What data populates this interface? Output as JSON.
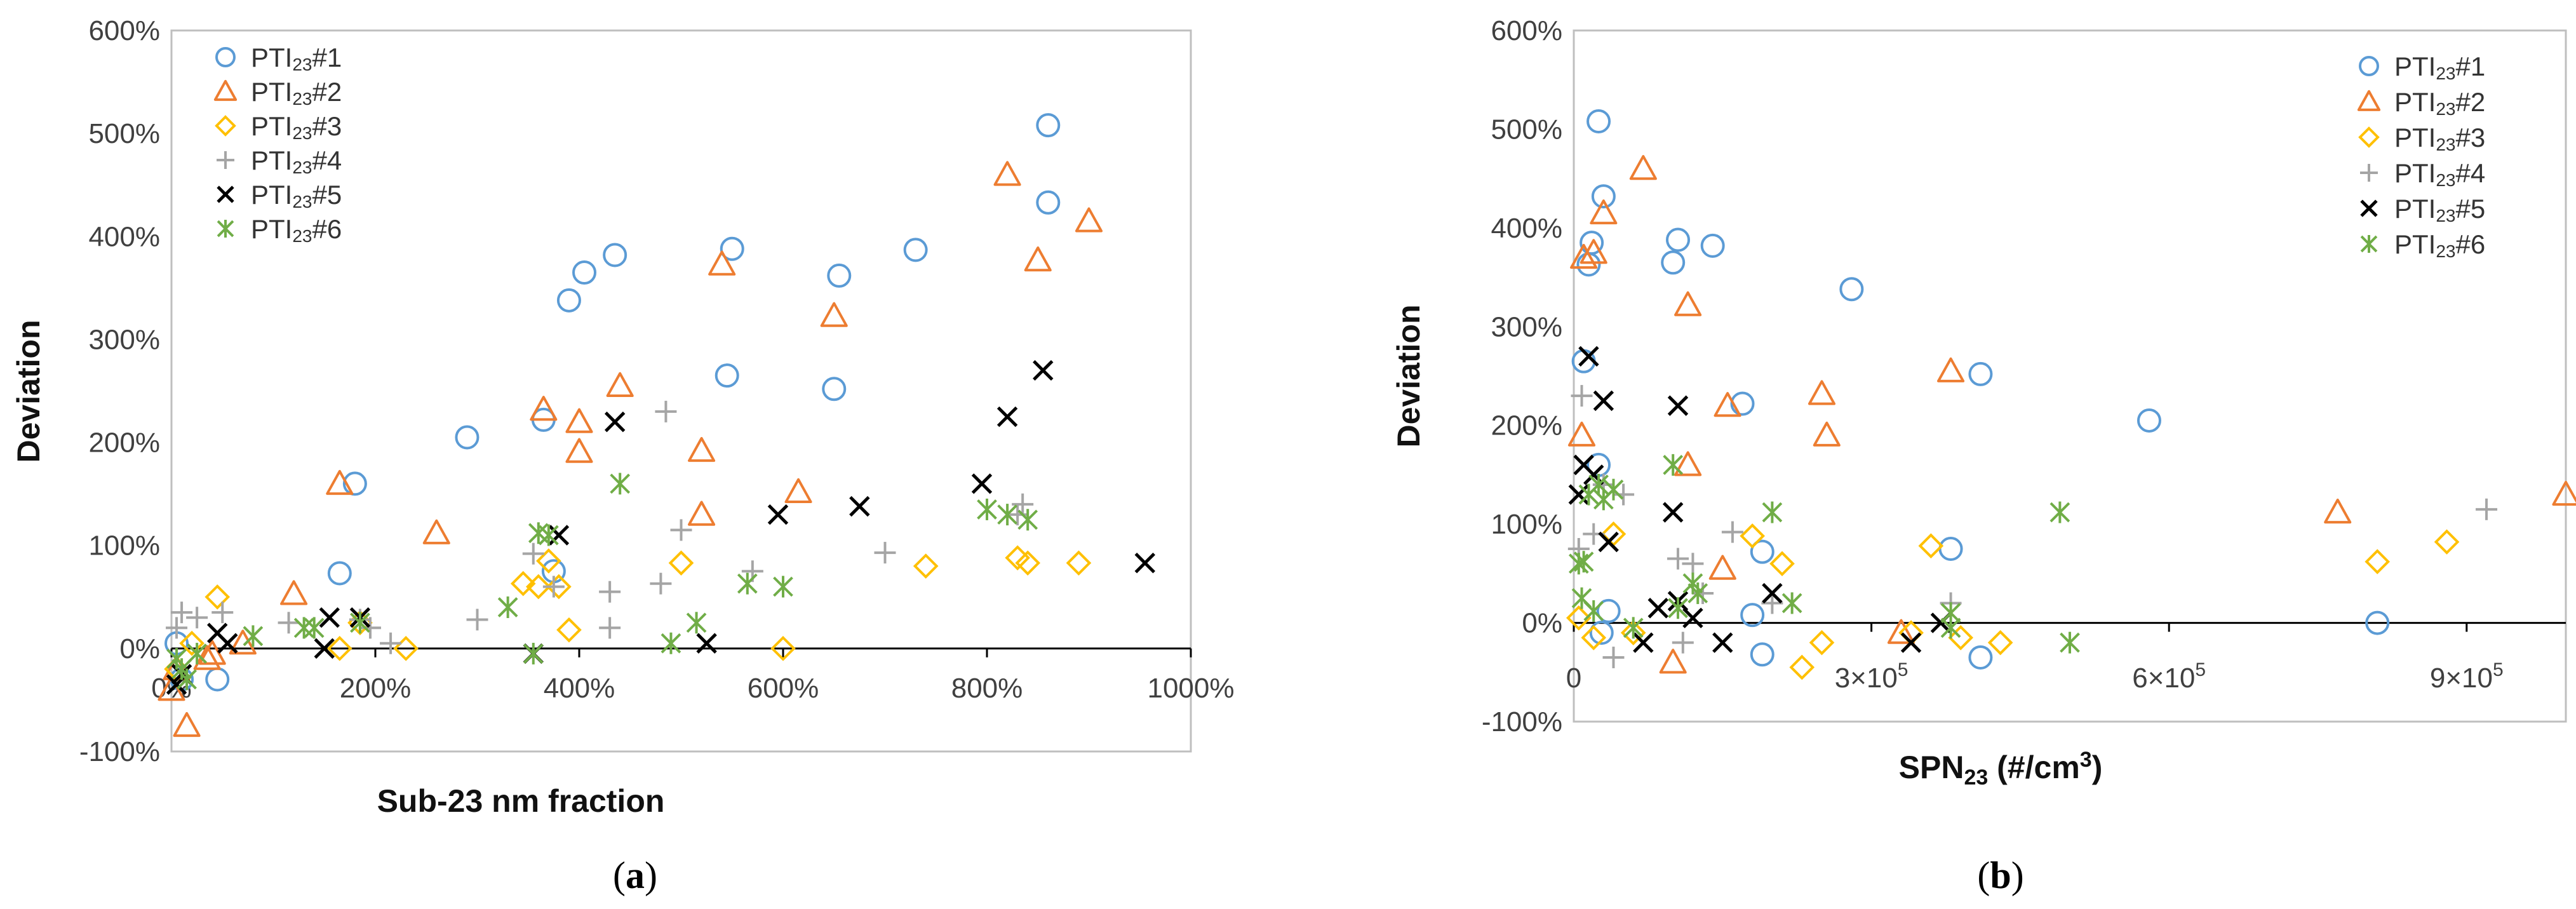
{
  "colors": {
    "PTI23 #1": "#5B9BD5",
    "PTI23 #2": "#ED7D31",
    "PTI23 #3": "#FFC000",
    "PTI23 #4": "#A5A5A5",
    "PTI23 #5": "#000000",
    "PTI23 #6": "#70AD47"
  },
  "markers": {
    "PTI23 #1": "circle",
    "PTI23 #2": "triangle",
    "PTI23 #3": "diamond",
    "PTI23 #4": "plus",
    "PTI23 #5": "x",
    "PTI23 #6": "star"
  },
  "legend_labels": [
    {
      "main": "PTI",
      "sub": "23",
      "tag": "#1"
    },
    {
      "main": "PTI",
      "sub": "23",
      "tag": "#2"
    },
    {
      "main": "PTI",
      "sub": "23",
      "tag": "#3"
    },
    {
      "main": "PTI",
      "sub": "23",
      "tag": "#4"
    },
    {
      "main": "PTI",
      "sub": "23",
      "tag": "#5"
    },
    {
      "main": "PTI",
      "sub": "23",
      "tag": "#6"
    }
  ],
  "panels": {
    "a": {
      "open": "(",
      "letter": "a",
      "close": ")"
    },
    "b": {
      "open": "(",
      "letter": "b",
      "close": ")"
    }
  },
  "chart_data": [
    {
      "type": "scatter",
      "xlabel": "Sub-23 nm fraction",
      "ylabel": "Deviation",
      "xlim": [
        0,
        1000
      ],
      "ylim": [
        -100,
        600
      ],
      "xticks": [
        0,
        200,
        400,
        600,
        800,
        1000
      ],
      "xtick_labels": [
        "0%",
        "200%",
        "400%",
        "600%",
        "800%",
        "1000%"
      ],
      "yticks": [
        -100,
        0,
        100,
        200,
        300,
        400,
        500,
        600
      ],
      "ytick_labels": [
        "-100%",
        "0%",
        "100%",
        "200%",
        "300%",
        "400%",
        "500%",
        "600%"
      ],
      "legend_position": "top-left",
      "series": [
        {
          "name": "PTI23 #1",
          "points": [
            [
              5,
              5
            ],
            [
              10,
              -30
            ],
            [
              45,
              -30
            ],
            [
              165,
              73
            ],
            [
              180,
              160
            ],
            [
              290,
              205
            ],
            [
              375,
              75
            ],
            [
              365,
              222
            ],
            [
              390,
              338
            ],
            [
              405,
              365
            ],
            [
              435,
              382
            ],
            [
              545,
              265
            ],
            [
              550,
              388
            ],
            [
              650,
              252
            ],
            [
              655,
              362
            ],
            [
              730,
              387
            ],
            [
              860,
              433
            ],
            [
              860,
              508
            ]
          ]
        },
        {
          "name": "PTI23 #2",
          "points": [
            [
              0,
              -40
            ],
            [
              5,
              -20
            ],
            [
              15,
              -75
            ],
            [
              35,
              -10
            ],
            [
              40,
              -5
            ],
            [
              70,
              5
            ],
            [
              120,
              53
            ],
            [
              165,
              160
            ],
            [
              260,
              112
            ],
            [
              365,
              232
            ],
            [
              400,
              191
            ],
            [
              400,
              220
            ],
            [
              440,
              255
            ],
            [
              520,
              130
            ],
            [
              520,
              192
            ],
            [
              540,
              373
            ],
            [
              615,
              152
            ],
            [
              650,
              323
            ],
            [
              820,
              460
            ],
            [
              850,
              377
            ],
            [
              900,
              415
            ]
          ]
        },
        {
          "name": "PTI23 #3",
          "points": [
            [
              5,
              -20
            ],
            [
              20,
              5
            ],
            [
              45,
              50
            ],
            [
              165,
              0
            ],
            [
              185,
              25
            ],
            [
              230,
              0
            ],
            [
              345,
              63
            ],
            [
              360,
              60
            ],
            [
              370,
              85
            ],
            [
              380,
              60
            ],
            [
              390,
              18
            ],
            [
              500,
              83
            ],
            [
              600,
              0
            ],
            [
              740,
              80
            ],
            [
              830,
              88
            ],
            [
              840,
              83
            ],
            [
              890,
              83
            ]
          ]
        },
        {
          "name": "PTI23 #4",
          "points": [
            [
              5,
              20
            ],
            [
              10,
              35
            ],
            [
              25,
              30
            ],
            [
              50,
              35
            ],
            [
              115,
              25
            ],
            [
              185,
              28
            ],
            [
              195,
              20
            ],
            [
              215,
              5
            ],
            [
              300,
              28
            ],
            [
              355,
              92
            ],
            [
              375,
              60
            ],
            [
              430,
              20
            ],
            [
              430,
              55
            ],
            [
              480,
              63
            ],
            [
              485,
              230
            ],
            [
              500,
              115
            ],
            [
              570,
              75
            ],
            [
              700,
              93
            ],
            [
              830,
              130
            ],
            [
              835,
              140
            ]
          ]
        },
        {
          "name": "PTI23 #5",
          "points": [
            [
              5,
              -35
            ],
            [
              10,
              -25
            ],
            [
              45,
              15
            ],
            [
              55,
              5
            ],
            [
              150,
              0
            ],
            [
              155,
              30
            ],
            [
              185,
              30
            ],
            [
              355,
              -5
            ],
            [
              380,
              110
            ],
            [
              435,
              220
            ],
            [
              525,
              5
            ],
            [
              595,
              130
            ],
            [
              675,
              138
            ],
            [
              795,
              160
            ],
            [
              820,
              225
            ],
            [
              855,
              270
            ],
            [
              955,
              83
            ]
          ]
        },
        {
          "name": "PTI23 #6",
          "points": [
            [
              5,
              -10
            ],
            [
              10,
              -20
            ],
            [
              15,
              -30
            ],
            [
              25,
              -5
            ],
            [
              80,
              12
            ],
            [
              130,
              20
            ],
            [
              140,
              20
            ],
            [
              185,
              25
            ],
            [
              330,
              40
            ],
            [
              355,
              -5
            ],
            [
              360,
              112
            ],
            [
              370,
              110
            ],
            [
              440,
              160
            ],
            [
              490,
              5
            ],
            [
              515,
              25
            ],
            [
              565,
              63
            ],
            [
              600,
              60
            ],
            [
              800,
              135
            ],
            [
              820,
              130
            ],
            [
              840,
              125
            ]
          ]
        }
      ]
    },
    {
      "type": "scatter",
      "xlabel": "SPN23 (#/cm3)",
      "ylabel": "Deviation",
      "xlim": [
        0,
        1000000
      ],
      "ylim": [
        -100,
        600
      ],
      "xticks": [
        0,
        300000,
        600000,
        900000
      ],
      "xtick_labels": [
        {
          "main": "0",
          "exp": ""
        },
        {
          "main": "3×10",
          "exp": "5"
        },
        {
          "main": "6×10",
          "exp": "5"
        },
        {
          "main": "9×10",
          "exp": "5"
        }
      ],
      "yticks": [
        -100,
        0,
        100,
        200,
        300,
        400,
        500,
        600
      ],
      "ytick_labels": [
        "-100%",
        "0%",
        "100%",
        "200%",
        "300%",
        "400%",
        "500%",
        "600%"
      ],
      "xlabel_parts": {
        "pre": "SPN",
        "sub": "23",
        "mid": " (#/cm",
        "sup": "3",
        "post": ")"
      },
      "legend_position": "top-right",
      "series": [
        {
          "name": "PTI23 #1",
          "points": [
            [
              10000,
              265
            ],
            [
              15000,
              363
            ],
            [
              18000,
              385
            ],
            [
              25000,
              508
            ],
            [
              30000,
              432
            ],
            [
              25000,
              160
            ],
            [
              28000,
              -10
            ],
            [
              35000,
              12
            ],
            [
              100000,
              365
            ],
            [
              105000,
              388
            ],
            [
              140000,
              382
            ],
            [
              170000,
              222
            ],
            [
              180000,
              8
            ],
            [
              190000,
              72
            ],
            [
              190000,
              -32
            ],
            [
              280000,
              338
            ],
            [
              380000,
              75
            ],
            [
              410000,
              252
            ],
            [
              410000,
              -35
            ],
            [
              580000,
              205
            ],
            [
              810000,
              0
            ]
          ]
        },
        {
          "name": "PTI23 #2",
          "points": [
            [
              8000,
              190
            ],
            [
              10000,
              370
            ],
            [
              20000,
              375
            ],
            [
              30000,
              415
            ],
            [
              70000,
              460
            ],
            [
              100000,
              -40
            ],
            [
              115000,
              322
            ],
            [
              115000,
              160
            ],
            [
              150000,
              55
            ],
            [
              155000,
              220
            ],
            [
              250000,
              232
            ],
            [
              255000,
              190
            ],
            [
              330000,
              -10
            ],
            [
              380000,
              255
            ],
            [
              770000,
              112
            ],
            [
              1000000,
              130
            ]
          ]
        },
        {
          "name": "PTI23 #3",
          "points": [
            [
              5000,
              5
            ],
            [
              20000,
              -15
            ],
            [
              40000,
              90
            ],
            [
              60000,
              -10
            ],
            [
              180000,
              88
            ],
            [
              210000,
              60
            ],
            [
              230000,
              -45
            ],
            [
              250000,
              -20
            ],
            [
              340000,
              -10
            ],
            [
              360000,
              78
            ],
            [
              390000,
              -15
            ],
            [
              430000,
              -20
            ],
            [
              810000,
              62
            ],
            [
              880000,
              82
            ]
          ]
        },
        {
          "name": "PTI23 #4",
          "points": [
            [
              5000,
              75
            ],
            [
              8000,
              230
            ],
            [
              20000,
              90
            ],
            [
              30000,
              140
            ],
            [
              40000,
              -35
            ],
            [
              50000,
              130
            ],
            [
              105000,
              65
            ],
            [
              110000,
              -20
            ],
            [
              120000,
              60
            ],
            [
              130000,
              30
            ],
            [
              160000,
              92
            ],
            [
              200000,
              20
            ],
            [
              380000,
              20
            ],
            [
              920000,
              115
            ]
          ]
        },
        {
          "name": "PTI23 #5",
          "points": [
            [
              5000,
              130
            ],
            [
              10000,
              160
            ],
            [
              15000,
              270
            ],
            [
              20000,
              150
            ],
            [
              30000,
              225
            ],
            [
              35000,
              82
            ],
            [
              70000,
              -20
            ],
            [
              85000,
              15
            ],
            [
              100000,
              112
            ],
            [
              105000,
              220
            ],
            [
              105000,
              22
            ],
            [
              120000,
              5
            ],
            [
              150000,
              -20
            ],
            [
              200000,
              30
            ],
            [
              340000,
              -20
            ],
            [
              370000,
              0
            ]
          ]
        },
        {
          "name": "PTI23 #6",
          "points": [
            [
              5000,
              60
            ],
            [
              8000,
              25
            ],
            [
              10000,
              62
            ],
            [
              15000,
              130
            ],
            [
              20000,
              12
            ],
            [
              25000,
              140
            ],
            [
              30000,
              125
            ],
            [
              40000,
              135
            ],
            [
              60000,
              -5
            ],
            [
              100000,
              160
            ],
            [
              105000,
              15
            ],
            [
              120000,
              40
            ],
            [
              125000,
              30
            ],
            [
              200000,
              112
            ],
            [
              220000,
              20
            ],
            [
              380000,
              -5
            ],
            [
              380000,
              10
            ],
            [
              490000,
              112
            ],
            [
              500000,
              -20
            ]
          ]
        }
      ]
    }
  ]
}
